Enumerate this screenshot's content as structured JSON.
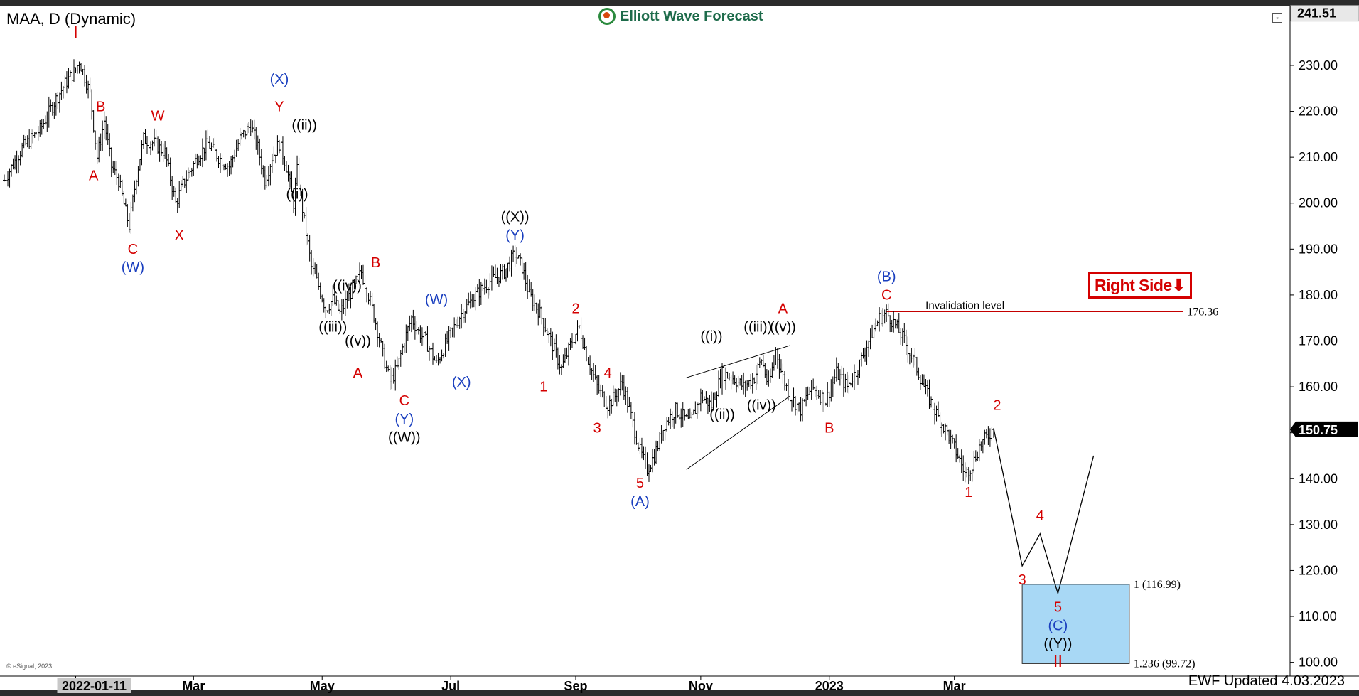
{
  "header": {
    "symbol_title": "MAA, D (Dynamic)",
    "brand": "Elliott Wave Forecast",
    "updated": "EWF Updated 4.03.2023",
    "copyright": "© eSignal, 2023",
    "right_side_label": "Right Side⬇"
  },
  "colors": {
    "red": "#d40000",
    "blue": "#1a3fbf",
    "black": "#000000",
    "target_box": "#a8d8f5",
    "brand_green": "#1d6b4a"
  },
  "chart_data": {
    "type": "ohlc",
    "title": "MAA, D (Dynamic)",
    "xlabel": "",
    "ylabel": "",
    "ylim": [
      97,
      243
    ],
    "y_ticks": [
      100,
      110,
      120,
      130,
      140,
      150,
      160,
      170,
      180,
      190,
      200,
      210,
      220,
      230
    ],
    "y_tick_labels": [
      "100.00",
      "110.00",
      "120.00",
      "130.00",
      "140.00",
      "150.00",
      "160.00",
      "170.00",
      "180.00",
      "190.00",
      "200.00",
      "210.00",
      "220.00",
      "230.00"
    ],
    "x_tick_labels": [
      {
        "label": "2022-01-11",
        "t": 0,
        "highlight": true
      },
      {
        "label": "Mar",
        "t": 33
      },
      {
        "label": "May",
        "t": 69
      },
      {
        "label": "Jul",
        "t": 105
      },
      {
        "label": "Sep",
        "t": 140
      },
      {
        "label": "Nov",
        "t": 175
      },
      {
        "label": "2023",
        "t": 211
      },
      {
        "label": "Mar",
        "t": 246
      }
    ],
    "x_range": [
      -20,
      340
    ],
    "last_price": "150.75",
    "top_price": "241.51",
    "price_path": [
      [
        -20,
        205
      ],
      [
        -15,
        212
      ],
      [
        -10,
        216
      ],
      [
        -6,
        222
      ],
      [
        -3,
        226
      ],
      [
        0,
        229
      ],
      [
        1,
        231
      ],
      [
        4,
        224
      ],
      [
        6,
        210
      ],
      [
        8,
        218
      ],
      [
        10,
        208
      ],
      [
        12,
        205
      ],
      [
        14,
        198
      ],
      [
        15,
        195
      ],
      [
        17,
        206
      ],
      [
        19,
        214
      ],
      [
        22,
        213
      ],
      [
        25,
        211
      ],
      [
        28,
        200
      ],
      [
        30,
        204
      ],
      [
        34,
        210
      ],
      [
        37,
        213
      ],
      [
        40,
        210
      ],
      [
        43,
        208
      ],
      [
        46,
        214
      ],
      [
        49,
        217
      ],
      [
        51,
        212
      ],
      [
        53,
        205
      ],
      [
        55,
        210
      ],
      [
        57,
        213
      ],
      [
        59,
        208
      ],
      [
        60,
        204
      ],
      [
        61,
        200
      ],
      [
        62,
        207
      ],
      [
        64,
        196
      ],
      [
        66,
        186
      ],
      [
        68,
        182
      ],
      [
        70,
        177
      ],
      [
        72,
        179
      ],
      [
        74,
        176
      ],
      [
        76,
        179
      ],
      [
        78,
        182
      ],
      [
        80,
        185
      ],
      [
        82,
        180
      ],
      [
        84,
        174
      ],
      [
        86,
        167
      ],
      [
        88,
        161
      ],
      [
        90,
        164
      ],
      [
        92,
        170
      ],
      [
        94,
        175
      ],
      [
        96,
        172
      ],
      [
        98,
        170
      ],
      [
        101,
        165
      ],
      [
        104,
        170
      ],
      [
        108,
        176
      ],
      [
        112,
        180
      ],
      [
        116,
        183
      ],
      [
        120,
        185
      ],
      [
        123,
        189
      ],
      [
        125,
        186
      ],
      [
        127,
        180
      ],
      [
        130,
        176
      ],
      [
        133,
        170
      ],
      [
        136,
        164
      ],
      [
        139,
        170
      ],
      [
        141,
        173
      ],
      [
        143,
        167
      ],
      [
        146,
        160
      ],
      [
        149,
        156
      ],
      [
        151,
        158
      ],
      [
        153,
        161
      ],
      [
        156,
        152
      ],
      [
        158,
        146
      ],
      [
        160,
        142
      ],
      [
        162,
        145
      ],
      [
        165,
        152
      ],
      [
        168,
        155
      ],
      [
        172,
        152
      ],
      [
        175,
        158
      ],
      [
        178,
        156
      ],
      [
        181,
        163
      ],
      [
        184,
        162
      ],
      [
        187,
        160
      ],
      [
        190,
        162
      ],
      [
        192,
        166
      ],
      [
        194,
        160
      ],
      [
        196,
        168
      ],
      [
        198,
        162
      ],
      [
        200,
        158
      ],
      [
        203,
        155
      ],
      [
        206,
        160
      ],
      [
        210,
        157
      ],
      [
        213,
        163
      ],
      [
        216,
        160
      ],
      [
        219,
        164
      ],
      [
        222,
        170
      ],
      [
        225,
        175
      ],
      [
        227,
        176
      ],
      [
        229,
        174
      ],
      [
        232,
        170
      ],
      [
        235,
        165
      ],
      [
        238,
        159
      ],
      [
        241,
        154
      ],
      [
        244,
        150
      ],
      [
        247,
        145
      ],
      [
        249,
        141
      ],
      [
        251,
        143
      ],
      [
        253,
        147
      ],
      [
        255,
        149
      ],
      [
        257,
        151
      ]
    ],
    "projection": [
      [
        257,
        151
      ],
      [
        265,
        121
      ],
      [
        270,
        128
      ],
      [
        275,
        115
      ],
      [
        285,
        145
      ]
    ],
    "channel_lines": [
      {
        "from": [
          171,
          162
        ],
        "to": [
          200,
          169
        ]
      },
      {
        "from": [
          171,
          142
        ],
        "to": [
          200,
          158
        ]
      }
    ],
    "invalidation": {
      "label": "Invalidation level",
      "value": 176.36,
      "value_label": "176.36",
      "t_from": 227,
      "t_to": 310
    },
    "target_zone": {
      "t_from": 265,
      "t_to": 295,
      "top": 116.99,
      "bottom": 99.72,
      "top_label": "1 (116.99)",
      "bottom_label": "1.236 (99.72)"
    },
    "wave_labels": [
      {
        "text": "I",
        "t": 0,
        "v": 236,
        "color": "red",
        "size": 24
      },
      {
        "text": "B",
        "t": 7,
        "v": 220,
        "color": "red"
      },
      {
        "text": "A",
        "t": 5,
        "v": 205,
        "color": "red"
      },
      {
        "text": "C",
        "t": 16,
        "v": 189,
        "color": "red"
      },
      {
        "text": "(W)",
        "t": 16,
        "v": 185,
        "color": "blue"
      },
      {
        "text": "W",
        "t": 23,
        "v": 218,
        "color": "red"
      },
      {
        "text": "X",
        "t": 29,
        "v": 192,
        "color": "red"
      },
      {
        "text": "(X)",
        "t": 57,
        "v": 226,
        "color": "blue"
      },
      {
        "text": "Y",
        "t": 57,
        "v": 220,
        "color": "red"
      },
      {
        "text": "((ii))",
        "t": 64,
        "v": 216,
        "color": "black"
      },
      {
        "text": "((i))",
        "t": 62,
        "v": 201,
        "color": "black"
      },
      {
        "text": "((iv))",
        "t": 76,
        "v": 181,
        "color": "black"
      },
      {
        "text": "B",
        "t": 84,
        "v": 186,
        "color": "red"
      },
      {
        "text": "((iii))",
        "t": 72,
        "v": 172,
        "color": "black"
      },
      {
        "text": "((v))",
        "t": 79,
        "v": 169,
        "color": "black"
      },
      {
        "text": "A",
        "t": 79,
        "v": 162,
        "color": "red"
      },
      {
        "text": "C",
        "t": 92,
        "v": 156,
        "color": "red"
      },
      {
        "text": "(Y)",
        "t": 92,
        "v": 152,
        "color": "blue"
      },
      {
        "text": "((W))",
        "t": 92,
        "v": 148,
        "color": "black"
      },
      {
        "text": "(W)",
        "t": 101,
        "v": 178,
        "color": "blue"
      },
      {
        "text": "(X)",
        "t": 108,
        "v": 160,
        "color": "blue"
      },
      {
        "text": "((X))",
        "t": 123,
        "v": 196,
        "color": "black"
      },
      {
        "text": "(Y)",
        "t": 123,
        "v": 192,
        "color": "blue"
      },
      {
        "text": "2",
        "t": 140,
        "v": 176,
        "color": "red"
      },
      {
        "text": "1",
        "t": 131,
        "v": 159,
        "color": "red"
      },
      {
        "text": "4",
        "t": 149,
        "v": 162,
        "color": "red"
      },
      {
        "text": "3",
        "t": 146,
        "v": 150,
        "color": "red"
      },
      {
        "text": "5",
        "t": 158,
        "v": 138,
        "color": "red"
      },
      {
        "text": "(A)",
        "t": 158,
        "v": 134,
        "color": "blue"
      },
      {
        "text": "((i))",
        "t": 178,
        "v": 170,
        "color": "black"
      },
      {
        "text": "((iii))",
        "t": 191,
        "v": 172,
        "color": "black"
      },
      {
        "text": "A",
        "t": 198,
        "v": 176,
        "color": "red"
      },
      {
        "text": "((v))",
        "t": 198,
        "v": 172,
        "color": "black"
      },
      {
        "text": "((ii))",
        "t": 181,
        "v": 153,
        "color": "black"
      },
      {
        "text": "((iv))",
        "t": 192,
        "v": 155,
        "color": "black"
      },
      {
        "text": "B",
        "t": 211,
        "v": 150,
        "color": "red"
      },
      {
        "text": "(B)",
        "t": 227,
        "v": 183,
        "color": "blue"
      },
      {
        "text": "C",
        "t": 227,
        "v": 179,
        "color": "red"
      },
      {
        "text": "2",
        "t": 258,
        "v": 155,
        "color": "red"
      },
      {
        "text": "1",
        "t": 250,
        "v": 136,
        "color": "red"
      },
      {
        "text": "4",
        "t": 270,
        "v": 131,
        "color": "red"
      },
      {
        "text": "3",
        "t": 265,
        "v": 117,
        "color": "red"
      },
      {
        "text": "5",
        "t": 275,
        "v": 111,
        "color": "red"
      },
      {
        "text": "(C)",
        "t": 275,
        "v": 107,
        "color": "blue"
      },
      {
        "text": "((Y))",
        "t": 275,
        "v": 103,
        "color": "black"
      },
      {
        "text": "II",
        "t": 275,
        "v": 99,
        "color": "red",
        "size": 24
      }
    ]
  }
}
